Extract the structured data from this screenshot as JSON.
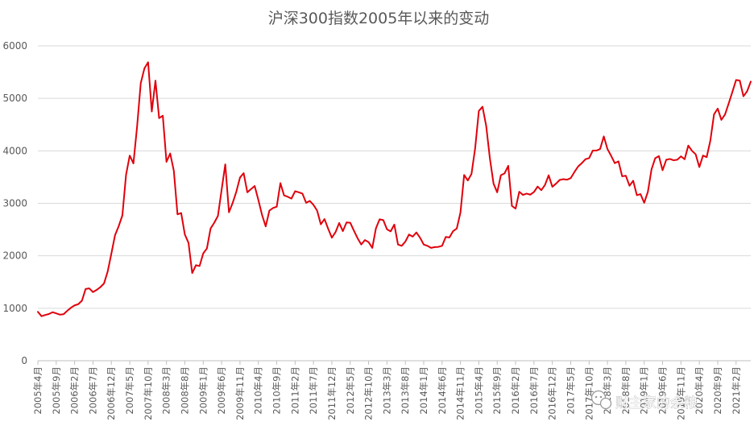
{
  "chart_data": {
    "type": "line",
    "title": "沪深300指数2005年以来的变动",
    "xlabel": "",
    "ylabel": "",
    "ylim": [
      0,
      6000
    ],
    "yticks": [
      0,
      1000,
      2000,
      3000,
      4000,
      5000,
      6000
    ],
    "grid": true,
    "legend": "none",
    "x_tick_labels": [
      "2005年4月",
      "2005年9月",
      "2006年2月",
      "2006年7月",
      "2006年12月",
      "2007年5月",
      "2007年10月",
      "2008年3月",
      "2008年8月",
      "2009年1月",
      "2009年6月",
      "2009年11月",
      "2010年4月",
      "2010年9月",
      "2011年2月",
      "2011年7月",
      "2011年12月",
      "2012年5月",
      "2012年10月",
      "2013年3月",
      "2013年8月",
      "2014年1月",
      "2014年6月",
      "2014年11月",
      "2015年4月",
      "2015年9月",
      "2016年2月",
      "2016年7月",
      "2016年12月",
      "2017年5月",
      "2017年10月",
      "2018年3月",
      "2018年8月",
      "2019年1月",
      "2019年6月",
      "2019年11月",
      "2020年4月",
      "2020年9月",
      "2021年2月"
    ],
    "series": [
      {
        "color": "#e0000b",
        "values": [
          932,
          849,
          872,
          890,
          925,
          902,
          878,
          886,
          952,
          1010,
          1055,
          1078,
          1145,
          1368,
          1379,
          1308,
          1350,
          1402,
          1472,
          1700,
          2041,
          2392,
          2565,
          2770,
          3543,
          3910,
          3760,
          4461,
          5291,
          5572,
          5688,
          4750,
          5338,
          4623,
          4670,
          3790,
          3950,
          3620,
          2790,
          2815,
          2405,
          2245,
          1670,
          1820,
          1805,
          2045,
          2140,
          2520,
          2630,
          2760,
          3255,
          3742,
          2830,
          3005,
          3220,
          3490,
          3575,
          3210,
          3270,
          3330,
          3065,
          2780,
          2560,
          2860,
          2910,
          2935,
          3385,
          3150,
          3125,
          3090,
          3230,
          3210,
          3185,
          3010,
          3045,
          2970,
          2860,
          2600,
          2700,
          2515,
          2345,
          2450,
          2625,
          2470,
          2635,
          2630,
          2480,
          2335,
          2215,
          2300,
          2260,
          2150,
          2525,
          2695,
          2680,
          2505,
          2465,
          2595,
          2215,
          2190,
          2270,
          2405,
          2365,
          2445,
          2345,
          2215,
          2190,
          2150,
          2165,
          2170,
          2190,
          2360,
          2350,
          2470,
          2520,
          2825,
          3540,
          3435,
          3560,
          4051,
          4760,
          4840,
          4475,
          3860,
          3375,
          3210,
          3535,
          3570,
          3715,
          2950,
          2900,
          3220,
          3160,
          3185,
          3165,
          3215,
          3320,
          3250,
          3350,
          3535,
          3315,
          3375,
          3445,
          3460,
          3450,
          3480,
          3595,
          3700,
          3765,
          3840,
          3860,
          4005,
          4005,
          4035,
          4275,
          4035,
          3905,
          3765,
          3800,
          3515,
          3525,
          3335,
          3430,
          3155,
          3175,
          3010,
          3220,
          3650,
          3860,
          3900,
          3630,
          3830,
          3845,
          3820,
          3830,
          3895,
          3840,
          4100,
          4000,
          3935,
          3690,
          3910,
          3880,
          4195,
          4695,
          4805,
          4590,
          4695,
          4905,
          5125,
          5350,
          5340,
          5040,
          5135,
          5320
        ]
      }
    ]
  },
  "watermark": {
    "text": "财主家的余粮",
    "icon": "wechat-icon"
  }
}
